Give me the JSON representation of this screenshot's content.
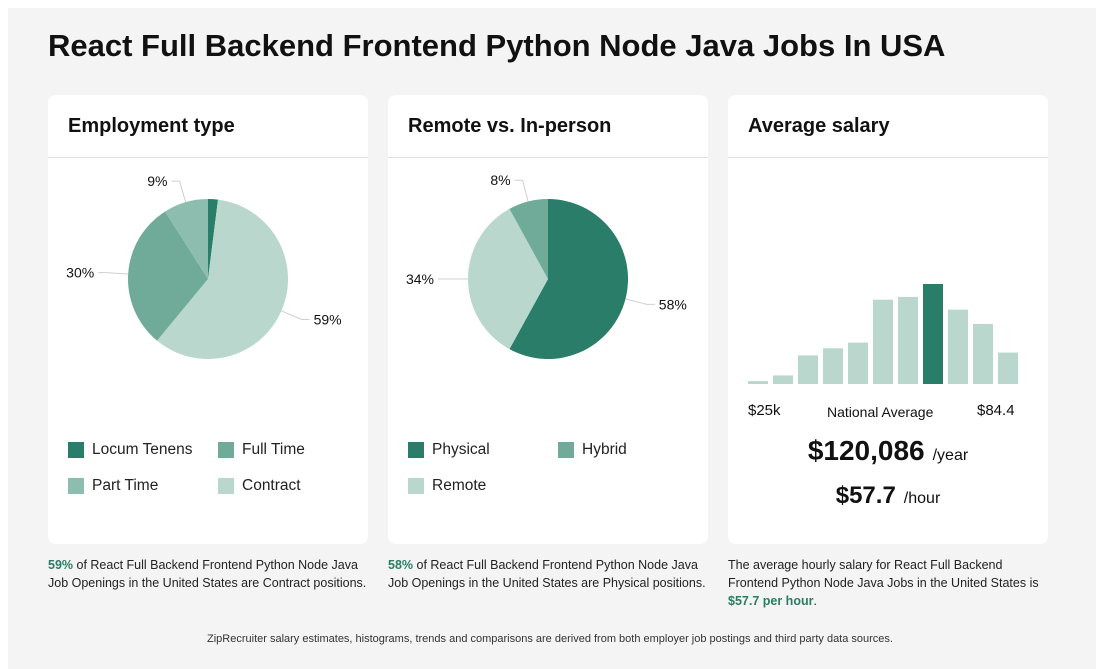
{
  "title": "React Full Backend Frontend Python Node Java Jobs In USA",
  "colors": {
    "dark": "#2a7d68",
    "medium": "#6fab98",
    "mid_light": "#8dbdaf",
    "light": "#b9d7cd"
  },
  "chart_data": [
    {
      "type": "pie",
      "title": "Employment type",
      "slices": [
        {
          "label": "Locum Tenens",
          "value": 2,
          "color": "#2a7d68",
          "label_text": ""
        },
        {
          "label": "Contract",
          "value": 59,
          "color": "#b9d7cd",
          "label_text": "59%"
        },
        {
          "label": "Full Time",
          "value": 30,
          "color": "#6fab98",
          "label_text": "30%"
        },
        {
          "label": "Part Time",
          "value": 9,
          "color": "#8dbdaf",
          "label_text": "9%"
        }
      ],
      "legend": [
        {
          "label": "Locum Tenens",
          "color": "#2a7d68"
        },
        {
          "label": "Full Time",
          "color": "#6fab98"
        },
        {
          "label": "Part Time",
          "color": "#8dbdaf"
        },
        {
          "label": "Contract",
          "color": "#b9d7cd"
        }
      ],
      "caption_highlight": "59%",
      "caption_text": " of React Full Backend Frontend Python Node Java Job Openings in the United States are Contract positions."
    },
    {
      "type": "pie",
      "title": "Remote vs. In-person",
      "slices": [
        {
          "label": "Physical",
          "value": 58,
          "color": "#2a7d68",
          "label_text": "58%"
        },
        {
          "label": "Remote",
          "value": 34,
          "color": "#b9d7cd",
          "label_text": "34%"
        },
        {
          "label": "Hybrid",
          "value": 8,
          "color": "#6fab98",
          "label_text": "8%"
        }
      ],
      "legend": [
        {
          "label": "Physical",
          "color": "#2a7d68"
        },
        {
          "label": "Hybrid",
          "color": "#6fab98"
        },
        {
          "label": "Remote",
          "color": "#b9d7cd"
        }
      ],
      "caption_highlight": "58%",
      "caption_text": " of React Full Backend Frontend Python Node Java Job Openings in the United States are Physical positions."
    },
    {
      "type": "bar",
      "title": "Average salary",
      "values": [
        2,
        6,
        20,
        25,
        29,
        59,
        61,
        70,
        52,
        42,
        22
      ],
      "highlight_index": 7,
      "ylim": [
        0,
        70
      ],
      "x_min_label": "$25k",
      "x_mid_label": "National Average",
      "x_max_label": "$84.4",
      "annual_value": "$120,086",
      "annual_unit": "/year",
      "hourly_value": "$57.7",
      "hourly_unit": "/hour",
      "caption_text": "The average hourly salary for React Full Backend Frontend Python Node Java Jobs in the United States is ",
      "caption_highlight": "$57.7 per hour",
      "caption_end": "."
    }
  ],
  "footer": "ZipRecruiter salary estimates, histograms, trends and comparisons are derived from both employer job postings and third party data sources."
}
